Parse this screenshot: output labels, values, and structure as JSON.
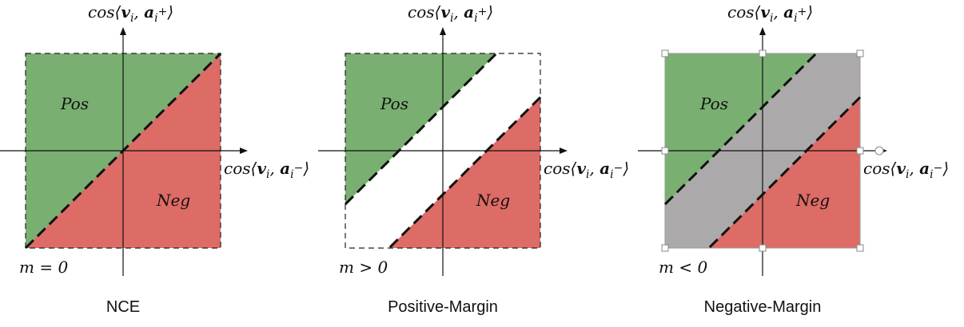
{
  "labels": {
    "y_axis_parts": [
      "cos⟨",
      "v",
      "i",
      ", ",
      "a",
      "i",
      "+",
      "⟩"
    ],
    "x_axis_parts": [
      "cos⟨",
      "v",
      "i",
      ", ",
      "a",
      "i",
      "−",
      "⟩"
    ],
    "pos": "Pos",
    "neg": "Neg"
  },
  "panels": [
    {
      "caption": "NCE",
      "margin_label": "m = 0",
      "margin": 0
    },
    {
      "caption": "Positive-Margin",
      "margin_label": "m > 0",
      "margin": 0.45
    },
    {
      "caption": "Negative-Margin",
      "margin_label": "m < 0",
      "margin": -0.45
    }
  ],
  "colors": {
    "positive": "#7aaf72",
    "negative": "#dd6b66",
    "positive_gap": "#ffffff",
    "negative_gap": "#aba9aa"
  }
}
